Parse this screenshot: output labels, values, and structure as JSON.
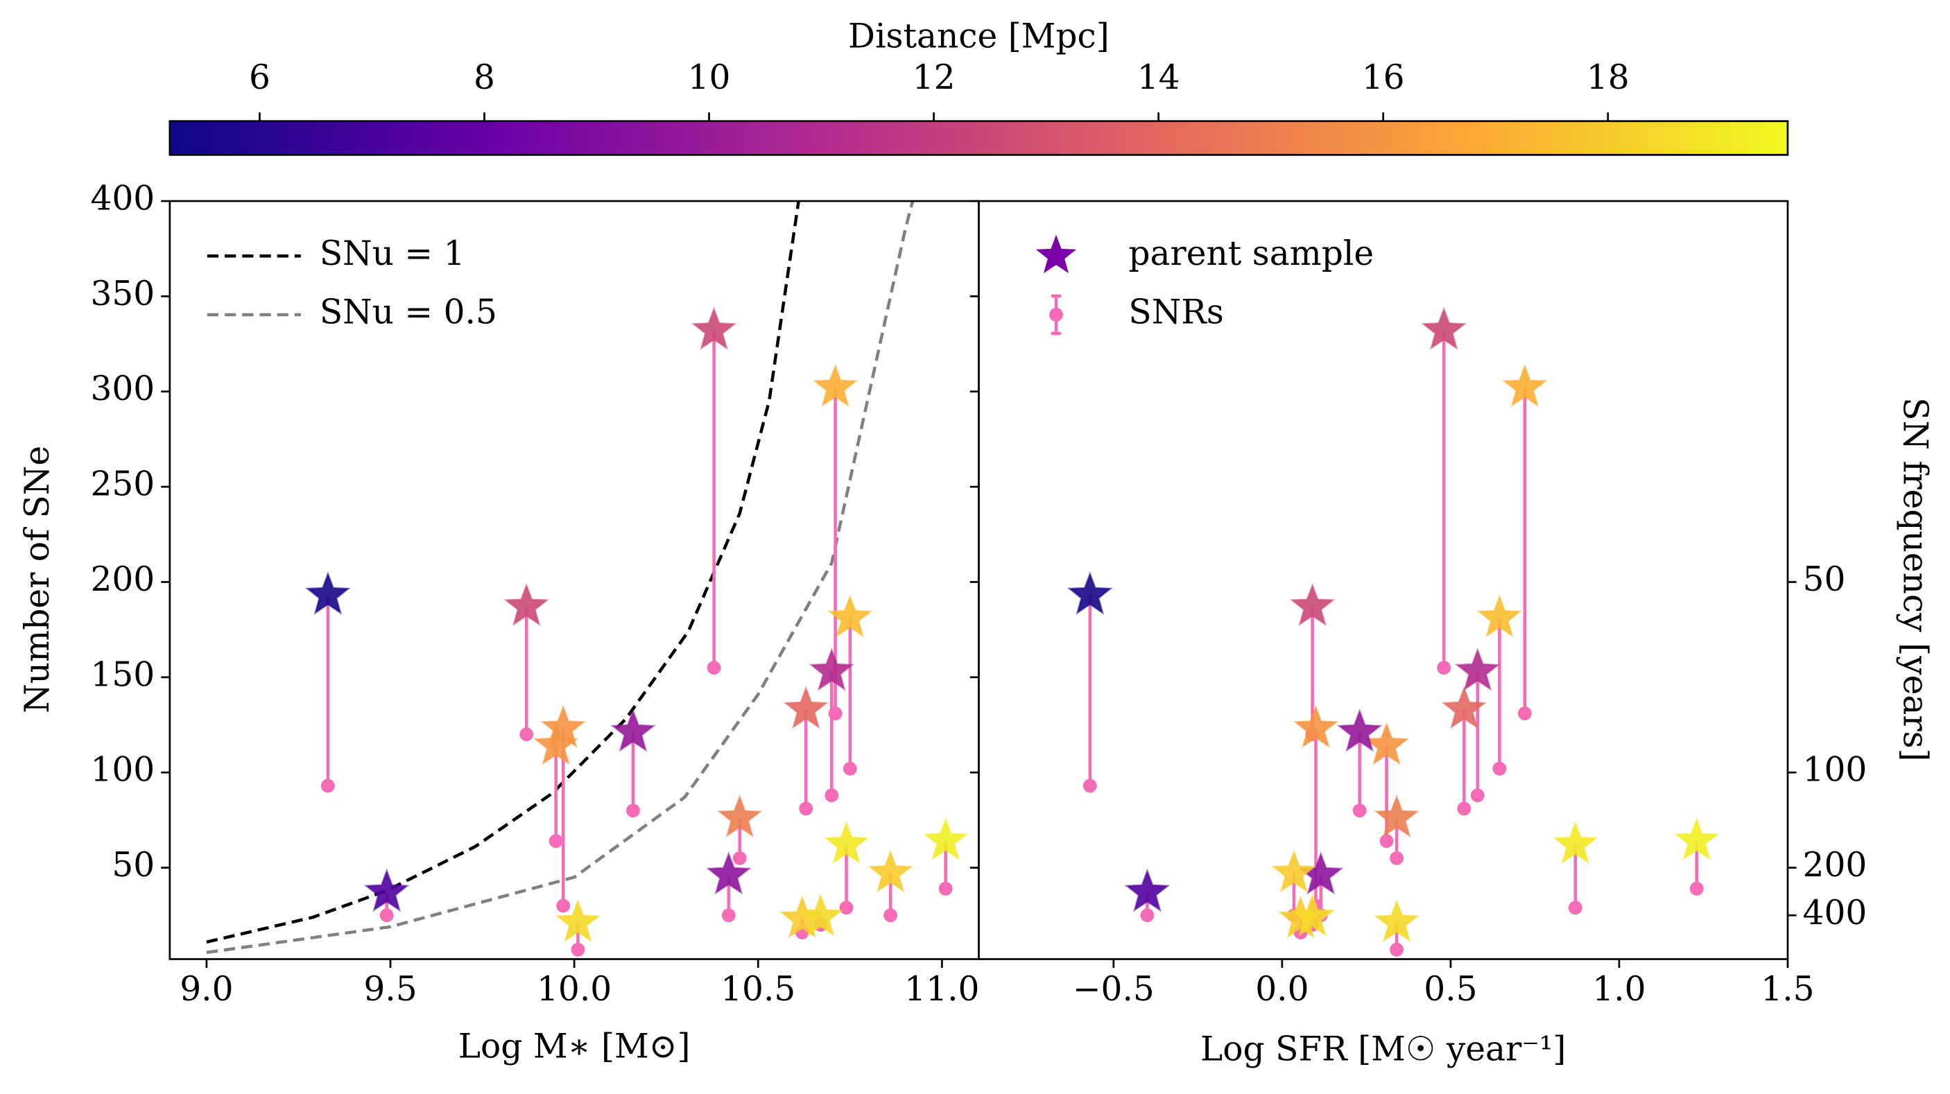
{
  "colorbar": {
    "label": "Distance [Mpc]",
    "clim": [
      5.2,
      19.6
    ],
    "ticks": [
      6,
      8,
      10,
      12,
      14,
      16,
      18
    ],
    "colormap": [
      "#0d0887",
      "#6a00a8",
      "#b12a90",
      "#e16462",
      "#fca636",
      "#f0f921"
    ]
  },
  "chart_data": [
    {
      "type": "scatter",
      "xlabel": "Log M∗ [M⊙]",
      "ylabel": "Number of SNe",
      "xlim": [
        8.9,
        11.1
      ],
      "ylim": [
        2,
        400
      ],
      "xticks": [
        {
          "value": 9.0,
          "label": "9.0"
        },
        9.5,
        {
          "value": 10.0,
          "label": "10.0"
        },
        10.5,
        {
          "value": 11.0,
          "label": "11.0"
        }
      ],
      "yticks": [
        50,
        100,
        150,
        200,
        250,
        300,
        350,
        400
      ],
      "legend": "upper left",
      "series": [
        {
          "name": "SNu = 1",
          "marker": "line",
          "linestyle": "dashed",
          "color": "#000000",
          "x": [
            9.0,
            9.29,
            9.49,
            9.73,
            9.94,
            10.14,
            10.31,
            10.45,
            10.53,
            10.61
          ],
          "values": [
            11,
            24,
            38,
            61,
            89,
            128,
            174,
            236,
            295,
            400
          ]
        },
        {
          "name": "SNu = 0.5",
          "marker": "line",
          "linestyle": "dashed",
          "color": "#808080",
          "x": [
            9.0,
            9.5,
            10.0,
            10.3,
            10.5,
            10.7,
            10.9,
            10.92
          ],
          "values": [
            5.5,
            19,
            45,
            87,
            141,
            210,
            385,
            400
          ]
        },
        {
          "marker": "o",
          "color": "#f56bb5",
          "x": [
            9.33,
            9.49,
            9.87,
            9.95,
            9.97,
            10.01,
            10.16,
            10.38,
            10.42,
            10.45,
            10.63,
            10.62,
            10.67,
            10.7,
            10.71,
            10.75,
            10.74,
            10.86,
            11.01
          ],
          "values": [
            93,
            25,
            120,
            64,
            30,
            7,
            80,
            155,
            25,
            55,
            81,
            16,
            20,
            88,
            131,
            102,
            29,
            25,
            39
          ]
        },
        {
          "marker": "star",
          "x": [
            9.33,
            9.49,
            9.87,
            9.95,
            9.97,
            10.01,
            10.16,
            10.38,
            10.42,
            10.45,
            10.63,
            10.62,
            10.67,
            10.7,
            10.71,
            10.75,
            10.74,
            10.86,
            11.01
          ],
          "values": [
            193,
            37,
            187,
            114,
            123,
            21,
            121,
            332,
            46,
            76,
            133,
            23,
            24,
            153,
            302,
            181,
            62,
            47,
            64
          ],
          "color_values": [
            5.5,
            7.3,
            12.5,
            16,
            16,
            18.5,
            9.8,
            12.5,
            9.5,
            15,
            14,
            18,
            18.5,
            11,
            17,
            17.5,
            19,
            18,
            19.3
          ]
        }
      ]
    },
    {
      "type": "scatter",
      "xlabel": "Log SFR [M☉ year⁻¹]",
      "y2label": "SN frequency [years]",
      "xlim": [
        -0.9,
        1.5
      ],
      "ylim": [
        2,
        400
      ],
      "y2lim": [
        25,
        5000
      ],
      "y2scale": "reciprocal",
      "xticks": [
        {
          "value": -0.5,
          "label": "−0.5"
        },
        {
          "value": 0.0,
          "label": "0.0"
        },
        0.5,
        {
          "value": 1.0,
          "label": "1.0"
        },
        1.5
      ],
      "y2ticks": [
        50,
        100,
        200,
        400
      ],
      "legend": "upper left",
      "series": [
        {
          "name": "parent sample",
          "marker": "star",
          "color": "#7b02a8",
          "x": [
            -0.57,
            -0.4,
            0.09,
            0.31,
            0.1,
            0.34,
            0.23,
            0.48,
            0.115,
            0.34,
            0.54,
            0.055,
            0.09,
            0.58,
            0.72,
            0.645,
            0.87,
            0.035,
            1.23
          ],
          "values": [
            193,
            37,
            187,
            114,
            123,
            21,
            121,
            332,
            46,
            76,
            133,
            23,
            24,
            153,
            302,
            181,
            62,
            47,
            64
          ],
          "color_values": [
            5.5,
            7.3,
            12.5,
            16,
            16,
            18.5,
            9.8,
            12.5,
            9.5,
            15,
            14,
            18,
            18.5,
            11,
            17,
            17.5,
            19,
            18,
            19.3
          ]
        },
        {
          "name": "SNRs",
          "marker": "o",
          "color": "#f56bb5",
          "x": [
            -0.57,
            -0.4,
            0.09,
            0.31,
            0.1,
            0.34,
            0.23,
            0.48,
            0.115,
            0.34,
            0.54,
            0.055,
            0.09,
            0.58,
            0.72,
            0.645,
            0.87,
            0.035,
            1.23
          ],
          "values": [
            93,
            25,
            120,
            64,
            30,
            7,
            80,
            155,
            25,
            55,
            81,
            16,
            20,
            88,
            131,
            102,
            29,
            25,
            39
          ]
        }
      ]
    }
  ]
}
